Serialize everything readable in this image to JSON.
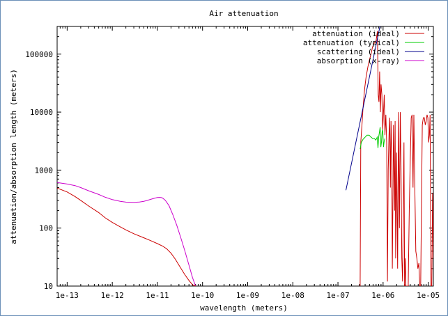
{
  "chart_data": {
    "type": "line",
    "title": "Air attenuation",
    "xlabel": "wavelength (meters)",
    "ylabel": "attenuation/absorption length (meters)",
    "x_scale": "log",
    "y_scale": "log",
    "xlim": [
      6e-14,
      1.3e-05
    ],
    "ylim": [
      10,
      300000
    ],
    "x_ticks": [
      {
        "v": 1e-13,
        "label": "1e-13"
      },
      {
        "v": 1e-12,
        "label": "1e-12"
      },
      {
        "v": 1e-11,
        "label": "1e-11"
      },
      {
        "v": 1e-10,
        "label": "1e-10"
      },
      {
        "v": 1e-09,
        "label": "1e-09"
      },
      {
        "v": 1e-08,
        "label": "1e-08"
      },
      {
        "v": 1e-07,
        "label": "1e-07"
      },
      {
        "v": 1e-06,
        "label": "1e-06"
      },
      {
        "v": 1e-05,
        "label": "1e-05"
      }
    ],
    "y_ticks": [
      {
        "v": 10,
        "label": "10"
      },
      {
        "v": 100,
        "label": "100"
      },
      {
        "v": 1000,
        "label": "1000"
      },
      {
        "v": 10000,
        "label": "10000"
      },
      {
        "v": 100000,
        "label": "100000"
      }
    ],
    "grid": false,
    "legend_position": "top-right",
    "series": [
      {
        "name": "attenuation (ideal)",
        "color": "#cc0000",
        "x": [
          3.1e-07,
          3.2e-07,
          3.4e-07,
          3.6e-07,
          3.9e-07,
          4.2e-07,
          4.6e-07,
          5e-07,
          5.4e-07,
          5.8e-07,
          6.2e-07,
          6.6e-07,
          7e-07,
          7.2e-07,
          7.5e-07,
          7.8e-07,
          8.1e-07,
          8.4e-07,
          8.7e-07,
          9e-07,
          9.4e-07,
          9.8e-07,
          1.02e-06,
          1.06e-06,
          1.1e-06,
          1.15e-06,
          1.2e-06,
          1.25e-06,
          1.3e-06,
          1.35e-06,
          1.4e-06,
          1.45e-06,
          1.5e-06,
          1.55e-06,
          1.6e-06,
          1.7e-06,
          1.8e-06,
          1.85e-06,
          1.9e-06,
          2e-06,
          2.1e-06,
          2.2e-06,
          2.3e-06,
          2.4e-06,
          2.5e-06,
          2.6e-06,
          2.7e-06,
          2.8e-06,
          2.9e-06,
          3e-06,
          3.1e-06,
          3.2e-06,
          3.4e-06,
          3.6e-06,
          3.8e-06,
          4e-06,
          4.2e-06,
          4.4e-06,
          4.6e-06,
          4.8e-06,
          5e-06,
          5.3e-06,
          5.6e-06,
          5.9e-06,
          6.2e-06,
          6.5e-06,
          6.8e-06,
          7.1e-06,
          7.4e-06,
          7.8e-06,
          8.2e-06,
          8.6e-06,
          9e-06,
          9.4e-06,
          9.8e-06,
          1.02e-05,
          1.06e-05,
          1.1e-05,
          1.15e-05,
          1.2e-05,
          1.25e-05,
          1.3e-05
        ],
        "y": [
          10,
          3000,
          6000,
          12000,
          25000,
          40000,
          60000,
          80000,
          100000,
          130000,
          150000,
          160000,
          170000,
          200000,
          250000,
          20000,
          15000,
          50000,
          10000,
          30000,
          20000,
          5000,
          10000,
          20000,
          4000,
          9000,
          3000,
          12,
          1000,
          4000,
          8000,
          500,
          7000,
          2000,
          20,
          6000,
          200,
          7000,
          30,
          2000,
          20,
          10000,
          100,
          10000,
          1000,
          30,
          12,
          200,
          3000,
          10,
          30,
          10,
          10,
          10,
          200,
          1500,
          8000,
          9000,
          500,
          9000,
          800,
          40,
          30,
          20,
          25,
          10,
          10,
          300,
          6000,
          8000,
          8000,
          6000,
          7000,
          9000,
          8000,
          3000,
          4000,
          9000,
          10,
          10,
          400,
          30
        ]
      },
      {
        "name": "attenuation (typical)",
        "color": "#00cc00",
        "x": [
          3.1e-07,
          3.3e-07,
          3.6e-07,
          4e-07,
          4.4e-07,
          4.9e-07,
          5.4e-07,
          5.9e-07,
          6.4e-07,
          6.9e-07,
          7.4e-07,
          7.7e-07,
          8e-07,
          8.3e-07,
          8.6e-07,
          8.9e-07,
          9.2e-07,
          9.5e-07,
          9.8e-07,
          1.02e-06,
          1.06e-06,
          1.1e-06
        ],
        "y": [
          2300,
          3000,
          3400,
          3700,
          4000,
          4000,
          3700,
          3500,
          3500,
          3300,
          3700,
          2400,
          3800,
          4500,
          5500,
          2500,
          3000,
          4500,
          5000,
          2500,
          3200,
          3500
        ]
      },
      {
        "name": "scattering (ideal)",
        "color": "#00008b",
        "x": [
          1.5e-07,
          8.5e-07
        ],
        "y": [
          450,
          300000
        ]
      },
      {
        "name": "absorption (x-ray)",
        "color": "#cc00cc",
        "x": [
          6e-14,
          1e-13,
          1.5e-13,
          2e-13,
          3e-13,
          5e-13,
          7e-13,
          1e-12,
          1.5e-12,
          2e-12,
          3e-12,
          4e-12,
          5e-12,
          6e-12,
          7e-12,
          8e-12,
          9e-12,
          1e-11,
          1.1e-11,
          1.2e-11,
          1.3e-11,
          1.5e-11,
          1.8e-11,
          2.2e-11,
          2.7e-11,
          3.3e-11,
          4e-11,
          5e-11,
          6e-11,
          7e-11
        ],
        "y": [
          610,
          575,
          540,
          500,
          440,
          380,
          340,
          310,
          290,
          280,
          278,
          282,
          290,
          300,
          312,
          322,
          330,
          336,
          338,
          336,
          330,
          300,
          245,
          170,
          110,
          68,
          42,
          23,
          14,
          10
        ]
      },
      {
        "name": "",
        "color": "#cc0000",
        "x": [
          6e-14,
          1e-13,
          1.5e-13,
          2e-13,
          3e-13,
          5e-13,
          7e-13,
          1e-12,
          1.5e-12,
          2e-12,
          3e-12,
          5e-12,
          7e-12,
          1e-11,
          1.3e-11,
          1.6e-11,
          2e-11,
          2.5e-11,
          3e-11,
          4e-11,
          5e-11,
          6e-11,
          7e-11
        ],
        "y": [
          490,
          420,
          350,
          300,
          240,
          185,
          150,
          125,
          105,
          93,
          80,
          68,
          61,
          54,
          49,
          44,
          37,
          29,
          23,
          16,
          12.5,
          10.5,
          10
        ]
      }
    ]
  }
}
